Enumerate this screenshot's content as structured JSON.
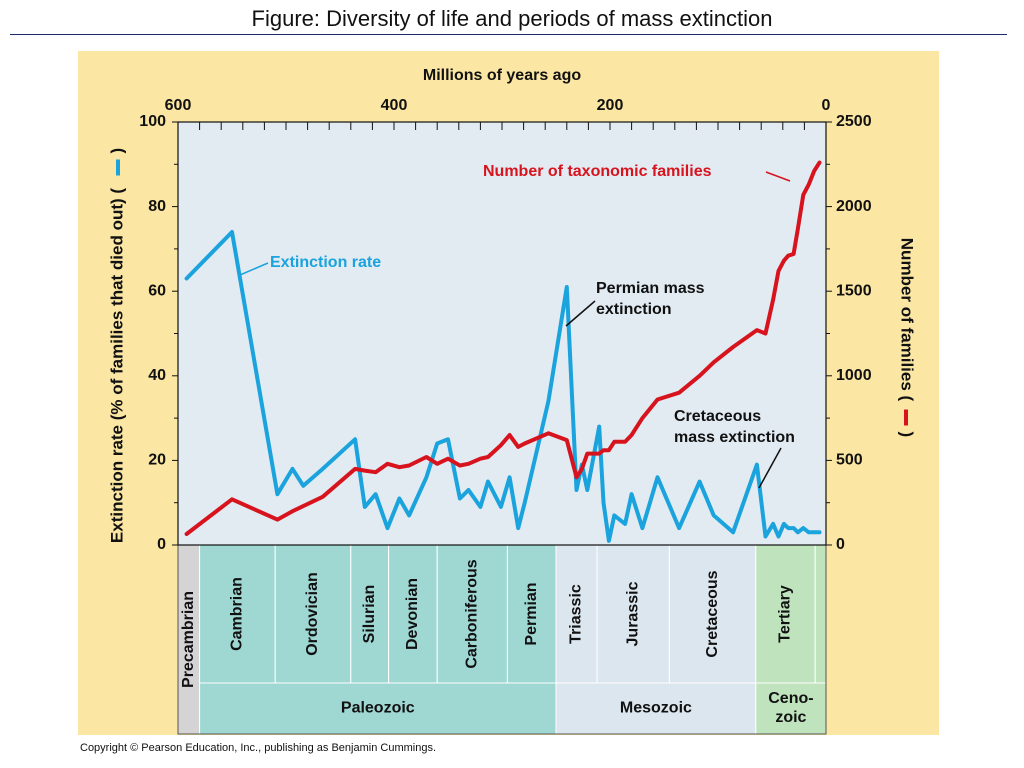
{
  "slide": {
    "title": "Figure:  Diversity of life and periods of mass extinction",
    "copyright": "Copyright © Pearson Education, Inc., publishing as Benjamin Cummings."
  },
  "colors": {
    "panel_bg": "#fbe7a3",
    "plot_bg": "#e2eaf2",
    "extinction_line": "#1aa3dd",
    "families_line": "#d7141e",
    "paleozoic_fill": "#9fd7d3",
    "mesozoic_fill": "#dce6ef",
    "cenozoic_fill": "#bfe3bd",
    "precambrian_fill": "#d4d4d4"
  },
  "chart_data": {
    "type": "line",
    "x_axis": {
      "label": "Millions of years ago",
      "ticks": [
        600,
        400,
        200,
        0
      ],
      "range": [
        600,
        0
      ]
    },
    "y_left": {
      "label": "Extinction rate (% of families that died out) (",
      "ticks": [
        0,
        20,
        40,
        60,
        80,
        100
      ],
      "range": [
        0,
        100
      ]
    },
    "y_right": {
      "label": "Number of families (",
      "ticks": [
        0,
        500,
        1000,
        1500,
        2000,
        2500
      ],
      "range": [
        0,
        2500
      ]
    },
    "grid": false,
    "series": [
      {
        "name": "Extinction rate",
        "axis": "left",
        "color": "#1aa3dd",
        "x": [
          592,
          550,
          508,
          494,
          484,
          466,
          436,
          427,
          417,
          406,
          395,
          386,
          370,
          360,
          350,
          339,
          331,
          320,
          313,
          301,
          293,
          285,
          279,
          257,
          240,
          231,
          226,
          221,
          210,
          206,
          201,
          196,
          186,
          180,
          170,
          156,
          136,
          117,
          104,
          86,
          64,
          56,
          49,
          44,
          39,
          35,
          30,
          26,
          21,
          16,
          11,
          6
        ],
        "y": [
          63,
          74,
          12,
          18,
          14,
          18,
          25,
          9,
          12,
          4,
          11,
          7,
          16,
          24,
          25,
          11,
          13,
          9,
          15,
          9,
          16,
          4,
          10,
          34,
          61,
          13,
          19,
          13,
          28,
          10,
          1,
          7,
          5,
          12,
          4,
          16,
          4,
          15,
          7,
          3,
          19,
          2,
          5,
          2,
          5,
          4,
          4,
          3,
          4,
          3,
          3,
          3
        ]
      },
      {
        "name": "Number of taxonomic families",
        "axis": "right",
        "color": "#d7141e",
        "x": [
          592,
          550,
          508,
          494,
          484,
          466,
          436,
          427,
          417,
          406,
          395,
          386,
          370,
          360,
          350,
          339,
          331,
          320,
          313,
          301,
          293,
          285,
          279,
          257,
          240,
          231,
          226,
          221,
          210,
          206,
          201,
          196,
          186,
          180,
          170,
          156,
          136,
          117,
          104,
          86,
          64,
          56,
          49,
          44,
          39,
          35,
          30,
          26,
          21,
          16,
          11,
          6
        ],
        "y": [
          65,
          270,
          150,
          200,
          230,
          285,
          450,
          440,
          430,
          480,
          460,
          470,
          520,
          480,
          510,
          470,
          480,
          510,
          520,
          590,
          650,
          580,
          600,
          660,
          620,
          400,
          450,
          540,
          540,
          560,
          560,
          610,
          610,
          650,
          750,
          860,
          900,
          1000,
          1080,
          1170,
          1270,
          1250,
          1450,
          1620,
          1680,
          1710,
          1720,
          1870,
          2070,
          2130,
          2210,
          2260
        ]
      }
    ],
    "annotations": [
      {
        "text": "Number of taxonomic families",
        "color": "#d7141e"
      },
      {
        "text": "Extinction rate",
        "color": "#1aa3dd"
      },
      {
        "lines": [
          "Permian mass",
          "extinction"
        ],
        "color": "#111111"
      },
      {
        "lines": [
          "Cretaceous",
          "mass extinction"
        ],
        "color": "#111111"
      }
    ],
    "periods": [
      {
        "name": "Precambrian",
        "start": 600,
        "end": 580,
        "era": "precambrian"
      },
      {
        "name": "Cambrian",
        "start": 580,
        "end": 510,
        "era": "paleozoic"
      },
      {
        "name": "Ordovician",
        "start": 510,
        "end": 440,
        "era": "paleozoic"
      },
      {
        "name": "Silurian",
        "start": 440,
        "end": 405,
        "era": "paleozoic"
      },
      {
        "name": "Devonian",
        "start": 405,
        "end": 360,
        "era": "paleozoic"
      },
      {
        "name": "Carboniferous",
        "start": 360,
        "end": 295,
        "era": "paleozoic"
      },
      {
        "name": "Permian",
        "start": 295,
        "end": 250,
        "era": "paleozoic"
      },
      {
        "name": "Triassic",
        "start": 250,
        "end": 212,
        "era": "mesozoic"
      },
      {
        "name": "Jurassic",
        "start": 212,
        "end": 145,
        "era": "mesozoic"
      },
      {
        "name": "Cretaceous",
        "start": 145,
        "end": 65,
        "era": "mesozoic"
      },
      {
        "name": "Tertiary",
        "start": 65,
        "end": 10,
        "era": "cenozoic"
      },
      {
        "name": "",
        "start": 10,
        "end": 0,
        "era": "cenozoic"
      }
    ],
    "eras": [
      {
        "name": "Paleozoic",
        "lines": [
          "Paleozoic"
        ],
        "start": 580,
        "end": 250,
        "key": "paleozoic"
      },
      {
        "name": "Mesozoic",
        "lines": [
          "Mesozoic"
        ],
        "start": 250,
        "end": 65,
        "key": "mesozoic"
      },
      {
        "name": "Cenozoic",
        "lines": [
          "Ceno-",
          "zoic"
        ],
        "start": 65,
        "end": 0,
        "key": "cenozoic"
      }
    ]
  }
}
